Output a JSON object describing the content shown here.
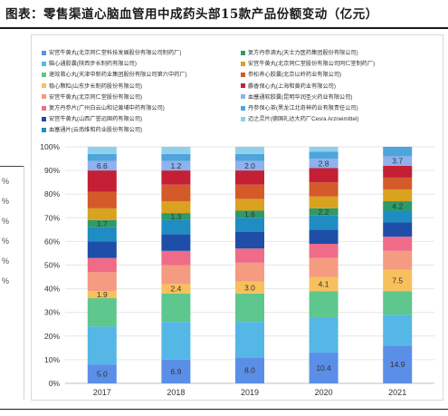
{
  "title": "图表：零售渠道心脑血管用中成药头部15款产品份额变动（亿元）",
  "left_fragment_ticks": [
    "%",
    "%",
    "%",
    "%",
    "%",
    "%"
  ],
  "chart_data": {
    "type": "bar",
    "stacked": true,
    "normalized": true,
    "categories": [
      "2017",
      "2018",
      "2019",
      "2020",
      "2021"
    ],
    "ylim": [
      0,
      100
    ],
    "yticks": [
      "0%",
      "10%",
      "20%",
      "30%",
      "40%",
      "50%",
      "60%",
      "70%",
      "80%",
      "90%",
      "100%"
    ],
    "grid": true,
    "legend_position": "top",
    "series": [
      {
        "name": "安宫牛黄丸(北京同仁堂科技发展股份有限公司制药厂)",
        "color": "#5b8ee6",
        "values": [
          8,
          10,
          11,
          13,
          16
        ],
        "labels": [
          "5.0",
          "6.9",
          "8.0",
          "10.4",
          "14.9"
        ]
      },
      {
        "name": "脑心通胶囊(陕西步长制药有限公司)",
        "color": "#55b7e6",
        "values": [
          16,
          16,
          15,
          15,
          13
        ],
        "labels": [
          "",
          "",
          "",
          "",
          ""
        ]
      },
      {
        "name": "速效救心丸(天津中新药业集团股份有限公司第六中药厂)",
        "color": "#5ec78d",
        "values": [
          12,
          12,
          12,
          11,
          10
        ],
        "labels": [
          "",
          "",
          "",
          "",
          ""
        ]
      },
      {
        "name": "稳心颗粒(山东步长制药股份有限公司)",
        "color": "#f7c05c",
        "values": [
          3,
          4,
          5,
          6,
          9
        ],
        "labels": [
          "1.9",
          "2.4",
          "3.0",
          "4.1",
          "7.5"
        ]
      },
      {
        "name": "安宫牛黄丸(北京同仁堂股份有限公司)",
        "color": "#f59b82",
        "values": [
          8,
          8,
          8,
          8,
          8
        ],
        "labels": [
          "",
          "",
          "",
          "",
          ""
        ]
      },
      {
        "name": "复方丹参片(广州白云山和记黄埔中药有限公司)",
        "color": "#ef6b88",
        "values": [
          6,
          6,
          6,
          6,
          6
        ],
        "labels": [
          "",
          "",
          "",
          "",
          ""
        ]
      },
      {
        "name": "安宫牛黄丸(山西广誉远国药有限公司)",
        "color": "#1e4ea8",
        "values": [
          7,
          7,
          7,
          6,
          6
        ],
        "labels": [
          "",
          "",
          "",
          "",
          ""
        ]
      },
      {
        "name": "血塞通片(云南维和药业股份有限公司)",
        "color": "#1f8cc2",
        "values": [
          6,
          6,
          6,
          6,
          5
        ],
        "labels": [
          "",
          "",
          "",
          "",
          ""
        ]
      },
      {
        "name": "复方丹参滴丸(天士力医药集团股份有限公司)",
        "color": "#2e9a6a",
        "values": [
          3,
          3,
          3,
          3,
          4
        ],
        "labels": [
          "1.7",
          "1.3",
          "1.6",
          "2.2",
          "4.2"
        ]
      },
      {
        "name": "安宫牛黄丸(北京同仁堂股份有限公司同仁堂制药厂)",
        "color": "#d9a21f",
        "values": [
          5,
          5,
          5,
          5,
          5
        ],
        "labels": [
          "",
          "",
          "",
          "",
          ""
        ]
      },
      {
        "name": "参松养心胶囊(北京以岭药业有限公司)",
        "color": "#d45a2a",
        "values": [
          7,
          7,
          6,
          6,
          5
        ],
        "labels": [
          "",
          "",
          "",
          "",
          ""
        ]
      },
      {
        "name": "麝香保心丸(上海和黄药业有限公司)",
        "color": "#c41f35",
        "values": [
          9,
          6,
          6,
          6,
          5
        ],
        "labels": [
          "",
          "",
          "",
          "",
          ""
        ]
      },
      {
        "name": "血塞通软胶囊(昆明华润圣火药业有限公司)",
        "color": "#8fb1ed",
        "values": [
          4,
          4,
          4,
          4,
          4
        ],
        "labels": [
          "6.6",
          "1.2",
          "2.0",
          "2.8",
          "3.7"
        ]
      },
      {
        "name": "丹参保心茶(黑龙江北奇神药业有限责任公司)",
        "color": "#4fa4dc",
        "values": [
          3,
          3,
          3,
          3,
          4
        ],
        "labels": [
          "",
          "",
          "",
          "",
          ""
        ]
      },
      {
        "name": "迈之灵片(德国礼达大药厂Cesra Arzneimittel)",
        "color": "#8fd0ef",
        "values": [
          3,
          3,
          3,
          2,
          0
        ],
        "labels": [
          "",
          "",
          "",
          "",
          ""
        ]
      }
    ],
    "legend_order": [
      0,
      8,
      1,
      9,
      2,
      10,
      3,
      11,
      4,
      12,
      5,
      13,
      6,
      14,
      7
    ]
  }
}
